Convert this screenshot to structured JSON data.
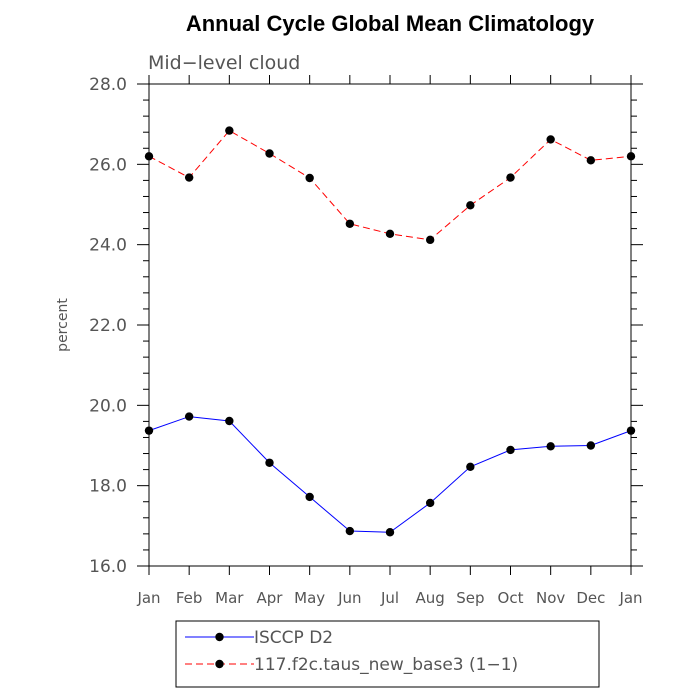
{
  "chart_data": {
    "type": "line",
    "title": "Annual Cycle Global Mean Climatology",
    "subtitle": "Mid−level cloud",
    "xlabel": "",
    "ylabel": "percent",
    "categories": [
      "Jan",
      "Feb",
      "Mar",
      "Apr",
      "May",
      "Jun",
      "Jul",
      "Aug",
      "Sep",
      "Oct",
      "Nov",
      "Dec",
      "Jan"
    ],
    "ylim": [
      16.0,
      28.0
    ],
    "yticks": [
      "16.0",
      "18.0",
      "20.0",
      "22.0",
      "24.0",
      "26.0",
      "28.0"
    ],
    "grid": false,
    "legend_position": "bottom",
    "series": [
      {
        "name": "ISCCP D2",
        "color": "#0000ff",
        "dash": "solid",
        "marker": "circle",
        "values": [
          19.37,
          19.72,
          19.61,
          18.57,
          17.72,
          16.87,
          16.84,
          17.57,
          18.47,
          18.89,
          18.98,
          19.0,
          19.37
        ]
      },
      {
        "name": "117.f2c.taus_new_base3 (1−1)",
        "color": "#ff0000",
        "dash": "dashed",
        "marker": "circle",
        "values": [
          26.2,
          25.67,
          26.84,
          26.27,
          25.66,
          24.52,
          24.27,
          24.12,
          24.98,
          25.67,
          26.62,
          26.1,
          26.2
        ]
      }
    ]
  }
}
